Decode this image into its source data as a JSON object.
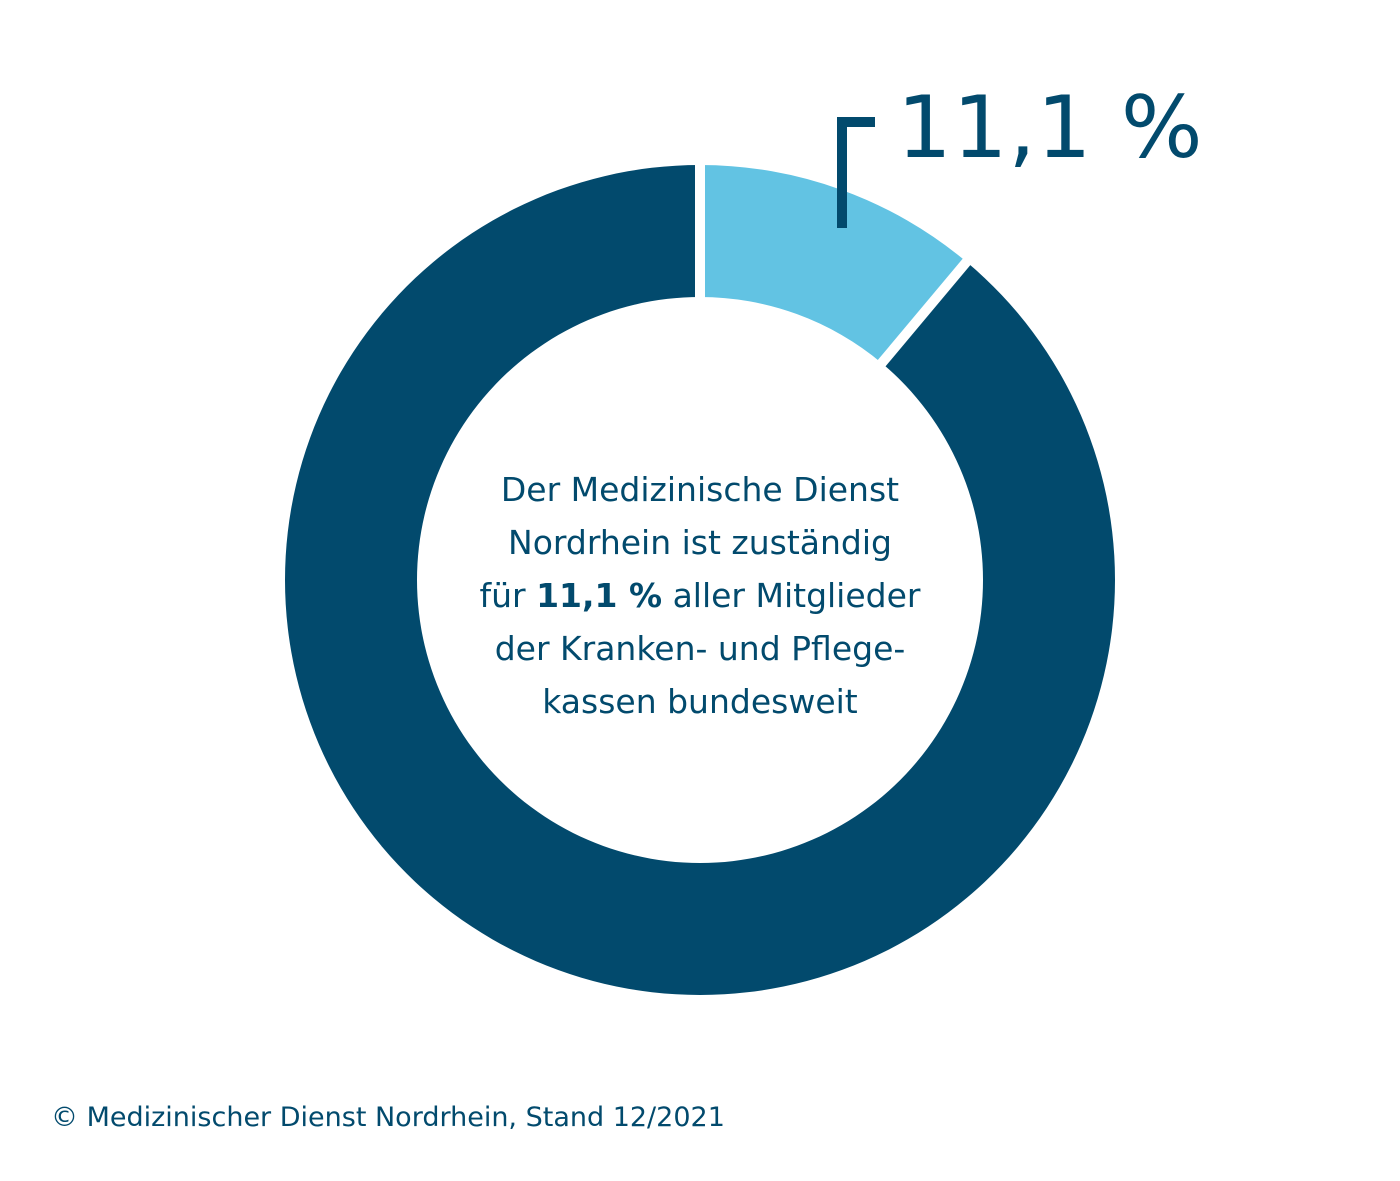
{
  "chart_data": {
    "type": "pie",
    "variant": "donut",
    "slices": [
      {
        "label": "Medizinischer Dienst Nordrhein",
        "value": 11.1,
        "color": "#62c3e3"
      },
      {
        "label": "",
        "value": 88.9,
        "color": "#024a6d"
      }
    ],
    "highlight_label": "11,1 %",
    "center_text": {
      "line1": "Der Medizinische Dienst",
      "line2": "Nordrhein ist zuständig",
      "line3_before": "für ",
      "line3_bold": "11,1 %",
      "line3_after": " aller Mitglieder",
      "line4": "der Kranken- und Pflege-",
      "line5": "kassen bundesweit"
    }
  },
  "footer": {
    "copyright": "© Medizinischer Dienst Nordrhein, Stand 12/2021"
  },
  "colors": {
    "dark": "#024a6d",
    "light": "#62c3e3"
  }
}
